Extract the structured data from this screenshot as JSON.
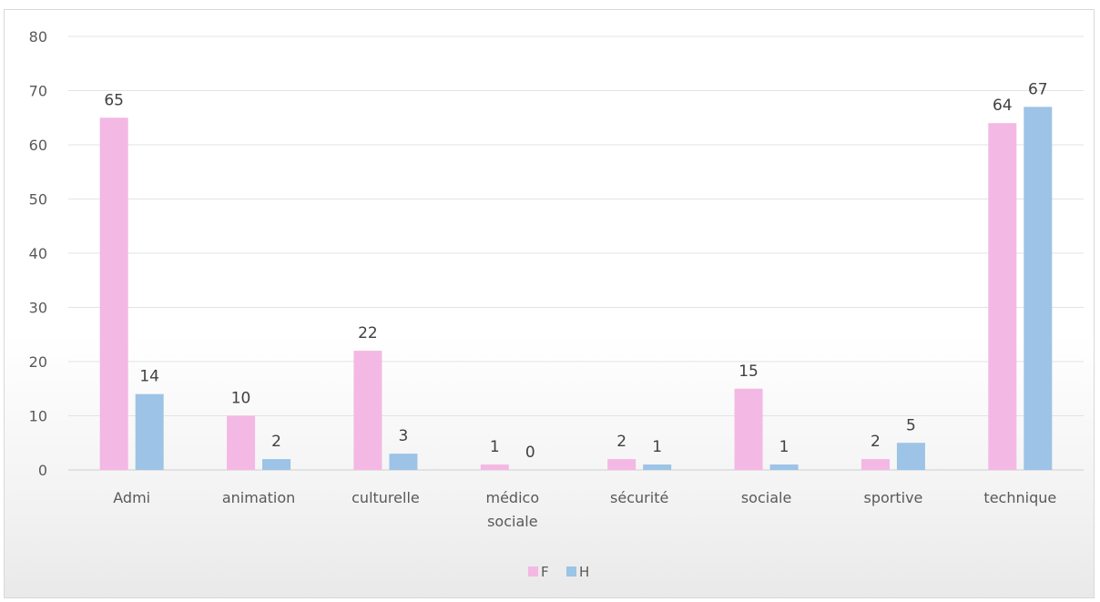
{
  "chart_data": {
    "type": "bar",
    "categories": [
      "Admi",
      "animation",
      "culturelle",
      "médico sociale",
      "sécurité",
      "sociale",
      "sportive",
      "technique"
    ],
    "series": [
      {
        "name": "F",
        "values": [
          65,
          10,
          22,
          1,
          2,
          15,
          2,
          64
        ],
        "color": "#f4b8e4"
      },
      {
        "name": "H",
        "values": [
          14,
          2,
          3,
          0,
          1,
          1,
          5,
          67
        ],
        "color": "#9dc3e6"
      }
    ],
    "ylim": [
      0,
      80
    ],
    "yticks": [
      0,
      10,
      20,
      30,
      40,
      50,
      60,
      70,
      80
    ],
    "grid": true,
    "legend": "bottom",
    "data_labels": true
  }
}
